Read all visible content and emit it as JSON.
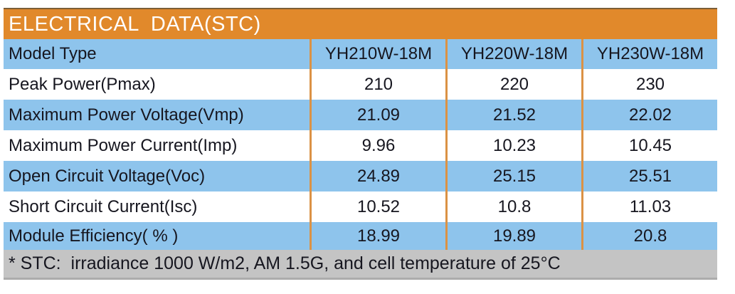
{
  "title": "ELECTRICAL  DATA(STC)",
  "table": {
    "header_row": {
      "label": "Model Type",
      "columns": [
        "YH210W-18M",
        "YH220W-18M",
        "YH230W-18M"
      ]
    },
    "rows": [
      {
        "label": "Peak Power(Pmax)",
        "values": [
          "210",
          "220",
          "230"
        ]
      },
      {
        "label": "Maximum Power Voltage(Vmp)",
        "values": [
          "21.09",
          "21.52",
          "22.02"
        ]
      },
      {
        "label": "Maximum Power Current(Imp)",
        "values": [
          "9.96",
          "10.23",
          "10.45"
        ]
      },
      {
        "label": "Open Circuit Voltage(Voc)",
        "values": [
          "24.89",
          "25.15",
          "25.51"
        ]
      },
      {
        "label": "Short Circuit Current(Isc)",
        "values": [
          "10.52",
          "10.8",
          "11.03"
        ]
      },
      {
        "label": "Module Efficiency( % )",
        "values": [
          "18.99",
          "19.89",
          "20.8"
        ]
      }
    ],
    "footnote": "* STC:  irradiance 1000 W/m2, AM 1.5G, and cell temperature of 25°C"
  },
  "colors": {
    "header_bg": "#E1892B",
    "header_text": "#FFFFFF",
    "row_blue": "#8EC4EC",
    "row_white": "#FFFFFF",
    "footer_bg": "#C4C4C4",
    "divider": "#DB9245",
    "text_dark": "#16161F",
    "footer_edge": "#ACACAC"
  }
}
